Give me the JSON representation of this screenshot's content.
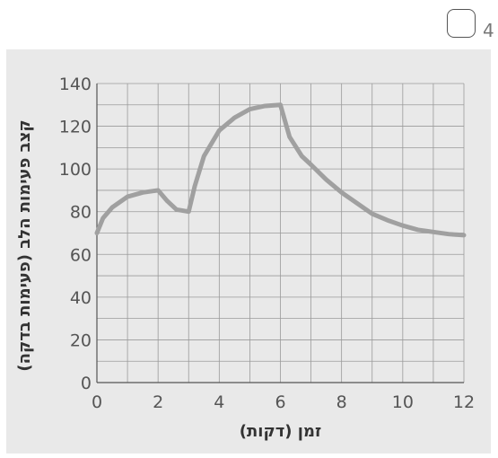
{
  "question": {
    "number": "4"
  },
  "chart_data": {
    "type": "line",
    "title": "",
    "xlabel": "זמן (דקות)",
    "ylabel": "קצב פעימות הלב (פעימות בדקה)",
    "xlim": [
      0,
      12
    ],
    "ylim": [
      0,
      140
    ],
    "xticks": [
      0,
      2,
      4,
      6,
      8,
      10,
      12
    ],
    "yticks": [
      0,
      20,
      40,
      60,
      80,
      100,
      120,
      140
    ],
    "grid": true,
    "line_color": "#a0a0a0",
    "series": [
      {
        "x": [
          0,
          0.2,
          0.5,
          1,
          1.5,
          2,
          2.3,
          2.6,
          3,
          3.2,
          3.5,
          4,
          4.5,
          5,
          5.5,
          6,
          6.3,
          6.7,
          7,
          7.5,
          8,
          8.5,
          9,
          9.5,
          10,
          10.5,
          11,
          11.5,
          12
        ],
        "y": [
          70,
          77,
          82,
          87,
          89,
          90,
          85,
          81,
          80,
          92,
          106,
          118,
          124,
          128,
          129.5,
          130,
          115,
          106,
          102,
          95,
          89,
          84,
          79,
          76,
          73.5,
          71.5,
          70.5,
          69.5,
          69
        ]
      }
    ]
  }
}
